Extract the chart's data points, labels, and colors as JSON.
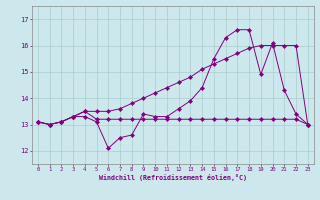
{
  "xlabel": "Windchill (Refroidissement éolien,°C)",
  "background_color": "#cce8ec",
  "line_color": "#800080",
  "grid_color": "#aacccc",
  "xlim": [
    -0.5,
    23.5
  ],
  "ylim": [
    11.5,
    17.5
  ],
  "yticks": [
    12,
    13,
    14,
    15,
    16,
    17
  ],
  "xticks": [
    0,
    1,
    2,
    3,
    4,
    5,
    6,
    7,
    8,
    9,
    10,
    11,
    12,
    13,
    14,
    15,
    16,
    17,
    18,
    19,
    20,
    21,
    22,
    23
  ],
  "series1": [
    13.1,
    13.0,
    13.1,
    13.3,
    13.3,
    13.1,
    12.1,
    12.5,
    12.6,
    13.4,
    13.3,
    13.3,
    13.6,
    13.9,
    14.4,
    15.5,
    16.3,
    16.6,
    16.6,
    14.9,
    16.1,
    14.3,
    13.4,
    13.0
  ],
  "series2": [
    13.1,
    13.0,
    13.1,
    13.3,
    13.5,
    13.2,
    13.2,
    13.2,
    13.2,
    13.2,
    13.2,
    13.2,
    13.2,
    13.2,
    13.2,
    13.2,
    13.2,
    13.2,
    13.2,
    13.2,
    13.2,
    13.2,
    13.2,
    13.0
  ],
  "series3": [
    13.1,
    13.0,
    13.1,
    13.3,
    13.5,
    13.5,
    13.5,
    13.6,
    13.8,
    14.0,
    14.2,
    14.4,
    14.6,
    14.8,
    15.1,
    15.3,
    15.5,
    15.7,
    15.9,
    16.0,
    16.0,
    16.0,
    16.0,
    13.0
  ]
}
